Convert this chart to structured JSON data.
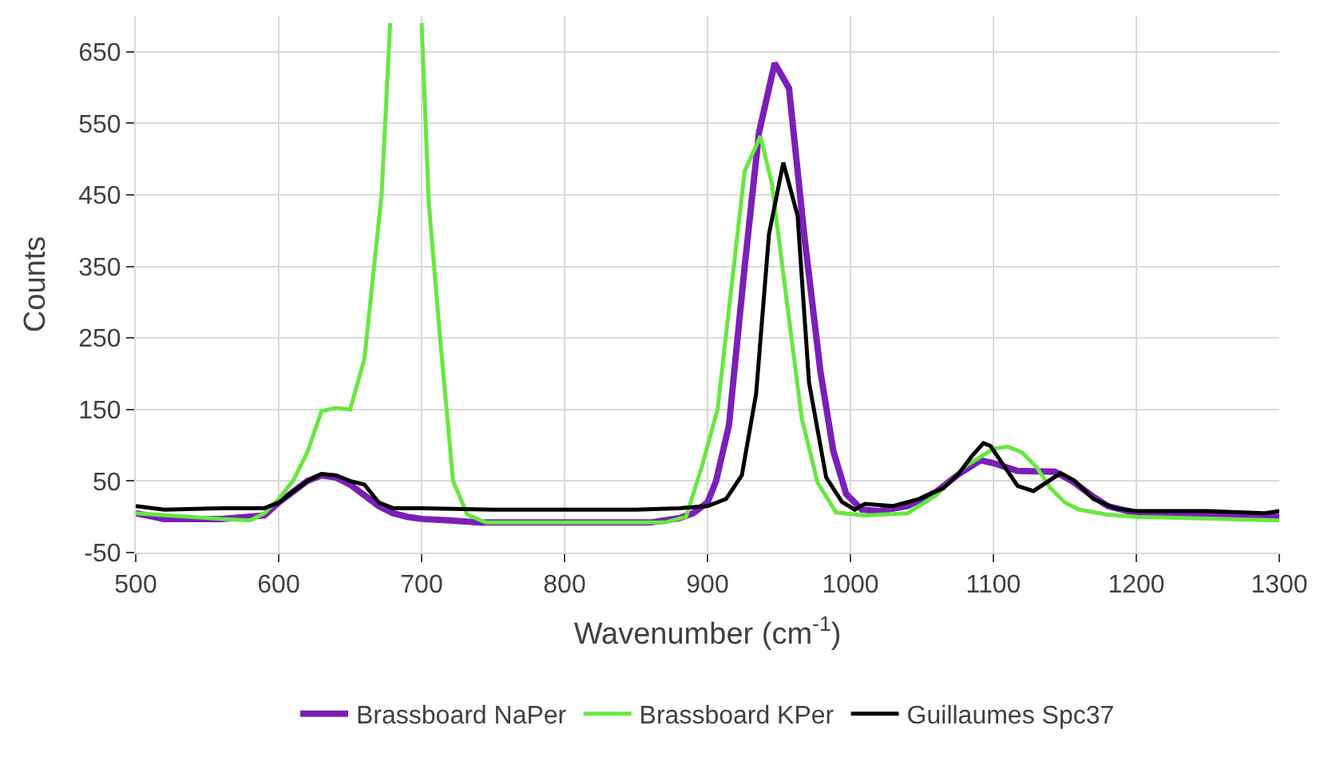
{
  "chart_data": {
    "type": "line",
    "xlabel": "Wavenumber (cm$^{-1}$)",
    "ylabel": "Counts",
    "xlim": [
      500,
      1300
    ],
    "xticks": [
      500,
      600,
      700,
      800,
      900,
      1000,
      1100,
      1200,
      1300
    ],
    "ylim": [
      -50,
      700
    ],
    "yticks": [
      -50,
      50,
      150,
      250,
      350,
      450,
      550,
      650
    ],
    "grid": true,
    "legend": "bottom",
    "marker": "none",
    "line_style": "solid",
    "series": [
      {
        "name": "Brassboard NaPer",
        "color": "#7b1fb8",
        "x": [
          500,
          520,
          560,
          590,
          600,
          610,
          620,
          630,
          640,
          650,
          660,
          670,
          680,
          690,
          700,
          720,
          740,
          800,
          860,
          880,
          890,
          900,
          906,
          915,
          926,
          936,
          947,
          957,
          968,
          979,
          988,
          997,
          1008,
          1020,
          1040,
          1060,
          1076,
          1091,
          1100,
          1117,
          1143,
          1155,
          1170,
          1180,
          1200,
          1250,
          1300
        ],
        "values": [
          5,
          -3,
          -3,
          2,
          20,
          35,
          50,
          58,
          55,
          45,
          30,
          15,
          5,
          0,
          -3,
          -5,
          -8,
          -8,
          -8,
          -2,
          5,
          20,
          50,
          128,
          350,
          537,
          634,
          599,
          388,
          203,
          92,
          32,
          10,
          8,
          15,
          35,
          60,
          79,
          75,
          64,
          63,
          50,
          28,
          15,
          5,
          3,
          0
        ]
      },
      {
        "name": "Brassboard KPer",
        "color": "#66e83f",
        "x": [
          500,
          560,
          580,
          590,
          600,
          610,
          620,
          630,
          640,
          650,
          660,
          672,
          678,
          690,
          700,
          705,
          713,
          722,
          732,
          745,
          800,
          870,
          885,
          896,
          907,
          926,
          937,
          945,
          957,
          966,
          977,
          990,
          1010,
          1040,
          1060,
          1080,
          1100,
          1110,
          1120,
          1130,
          1140,
          1150,
          1160,
          1180,
          1200,
          1300
        ],
        "values": [
          5,
          -3,
          -5,
          5,
          25,
          50,
          90,
          148,
          152,
          150,
          221,
          450,
          690,
          null,
          690,
          439,
          248,
          50,
          3,
          -8,
          -8,
          -8,
          0,
          70,
          150,
          483,
          532,
          466,
          277,
          137,
          48,
          6,
          2,
          5,
          30,
          70,
          95,
          98,
          90,
          70,
          40,
          20,
          10,
          3,
          0,
          -5
        ]
      },
      {
        "name": "Guillaumes Spc37",
        "color": "#000000",
        "x": [
          500,
          520,
          560,
          590,
          600,
          610,
          620,
          630,
          640,
          650,
          660,
          670,
          680,
          700,
          750,
          800,
          850,
          880,
          900,
          913,
          924,
          934,
          943,
          953,
          963,
          971,
          983,
          994,
          1003,
          1010,
          1030,
          1048,
          1065,
          1076,
          1085,
          1093,
          1098,
          1117,
          1128,
          1147,
          1157,
          1170,
          1185,
          1200,
          1250,
          1290,
          1300
        ],
        "values": [
          15,
          10,
          12,
          12,
          20,
          35,
          50,
          60,
          58,
          50,
          45,
          20,
          12,
          12,
          10,
          10,
          10,
          12,
          15,
          25,
          58,
          172,
          395,
          495,
          421,
          188,
          55,
          21,
          10,
          18,
          15,
          25,
          40,
          61,
          85,
          103,
          99,
          43,
          36,
          61,
          50,
          25,
          12,
          8,
          8,
          5,
          8
        ]
      }
    ]
  }
}
